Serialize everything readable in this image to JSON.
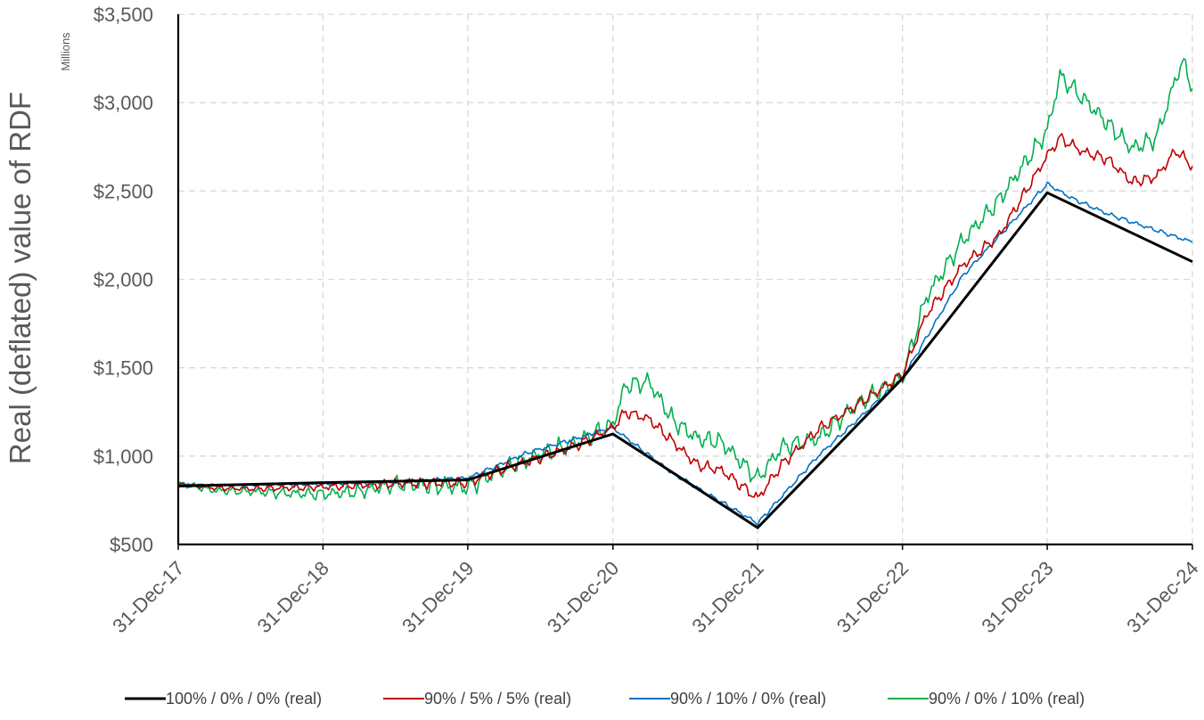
{
  "chart_data": {
    "type": "line",
    "ylabel": "Real (deflated) value of RDF",
    "y_units_label": "Millions",
    "ylim": [
      500,
      3500
    ],
    "y_ticks": [
      500,
      1000,
      1500,
      2000,
      2500,
      3000,
      3500
    ],
    "y_tick_labels": [
      "$500",
      "$1,000",
      "$1,500",
      "$2,000",
      "$2,500",
      "$3,000",
      "$3,500"
    ],
    "x_range": [
      "2017-12-31",
      "2024-12-31"
    ],
    "x_ticks": [
      "2017-12-31",
      "2018-12-31",
      "2019-12-31",
      "2020-12-31",
      "2021-12-31",
      "2022-12-31",
      "2023-12-31",
      "2024-12-31"
    ],
    "x_tick_labels": [
      "31-Dec-17",
      "31-Dec-18",
      "31-Dec-19",
      "31-Dec-20",
      "31-Dec-21",
      "31-Dec-22",
      "31-Dec-23",
      "31-Dec-24"
    ],
    "grid": true,
    "legend_position": "bottom",
    "series": [
      {
        "name": "100% / 0% / 0% (real)",
        "color": "#000000",
        "points": [
          [
            "2017-12-31",
            830
          ],
          [
            "2018-12-31",
            850
          ],
          [
            "2019-12-31",
            865
          ],
          [
            "2020-12-31",
            1125
          ],
          [
            "2021-12-31",
            595
          ],
          [
            "2022-12-31",
            1440
          ],
          [
            "2023-12-31",
            2490
          ],
          [
            "2024-12-31",
            2100
          ]
        ]
      },
      {
        "name": "90% / 5% / 5% (real)",
        "color": "#C00000",
        "points": [
          [
            "2017-12-31",
            840
          ],
          [
            "2018-04-01",
            820
          ],
          [
            "2018-07-01",
            815
          ],
          [
            "2018-10-01",
            820
          ],
          [
            "2018-12-31",
            825
          ],
          [
            "2019-04-01",
            835
          ],
          [
            "2019-07-01",
            845
          ],
          [
            "2019-12-31",
            850
          ],
          [
            "2020-04-01",
            930
          ],
          [
            "2020-07-01",
            990
          ],
          [
            "2020-10-01",
            1060
          ],
          [
            "2020-12-31",
            1160
          ],
          [
            "2021-02-01",
            1250
          ],
          [
            "2021-04-01",
            1210
          ],
          [
            "2021-06-01",
            1080
          ],
          [
            "2021-08-01",
            950
          ],
          [
            "2021-10-01",
            920
          ],
          [
            "2021-12-31",
            760
          ],
          [
            "2022-03-01",
            950
          ],
          [
            "2022-06-01",
            1150
          ],
          [
            "2022-09-01",
            1280
          ],
          [
            "2022-12-31",
            1460
          ],
          [
            "2023-03-01",
            1800
          ],
          [
            "2023-06-01",
            2080
          ],
          [
            "2023-09-01",
            2250
          ],
          [
            "2023-12-31",
            2700
          ],
          [
            "2024-02-01",
            2800
          ],
          [
            "2024-04-01",
            2720
          ],
          [
            "2024-06-01",
            2680
          ],
          [
            "2024-08-01",
            2550
          ],
          [
            "2024-10-01",
            2580
          ],
          [
            "2024-11-20",
            2730
          ],
          [
            "2024-12-31",
            2640
          ]
        ]
      },
      {
        "name": "90% / 10% / 0% (real)",
        "color": "#0070C0",
        "points": [
          [
            "2017-12-31",
            840
          ],
          [
            "2018-06-01",
            835
          ],
          [
            "2018-12-31",
            840
          ],
          [
            "2019-06-01",
            850
          ],
          [
            "2019-12-31",
            875
          ],
          [
            "2020-06-01",
            1020
          ],
          [
            "2020-12-31",
            1160
          ],
          [
            "2021-06-01",
            900
          ],
          [
            "2021-12-31",
            620
          ],
          [
            "2022-06-01",
            1000
          ],
          [
            "2022-12-31",
            1440
          ],
          [
            "2023-06-01",
            2020
          ],
          [
            "2023-12-31",
            2540
          ],
          [
            "2024-03-01",
            2460
          ],
          [
            "2024-06-01",
            2370
          ],
          [
            "2024-09-01",
            2300
          ],
          [
            "2024-12-31",
            2210
          ]
        ]
      },
      {
        "name": "90% / 0% / 10% (real)",
        "color": "#00B050",
        "points": [
          [
            "2017-12-31",
            845
          ],
          [
            "2018-04-01",
            805
          ],
          [
            "2018-07-01",
            800
          ],
          [
            "2018-10-01",
            790
          ],
          [
            "2018-12-31",
            785
          ],
          [
            "2019-04-01",
            800
          ],
          [
            "2019-07-01",
            840
          ],
          [
            "2019-12-31",
            825
          ],
          [
            "2020-04-01",
            930
          ],
          [
            "2020-07-01",
            1010
          ],
          [
            "2020-10-01",
            1080
          ],
          [
            "2020-12-31",
            1180
          ],
          [
            "2021-02-01",
            1400
          ],
          [
            "2021-04-01",
            1420
          ],
          [
            "2021-06-01",
            1200
          ],
          [
            "2021-08-01",
            1100
          ],
          [
            "2021-10-01",
            1080
          ],
          [
            "2021-12-31",
            870
          ],
          [
            "2022-03-01",
            1050
          ],
          [
            "2022-06-01",
            1100
          ],
          [
            "2022-09-01",
            1280
          ],
          [
            "2022-12-31",
            1450
          ],
          [
            "2023-03-01",
            1900
          ],
          [
            "2023-06-01",
            2220
          ],
          [
            "2023-09-01",
            2450
          ],
          [
            "2023-12-31",
            2840
          ],
          [
            "2024-02-01",
            3150
          ],
          [
            "2024-04-01",
            3020
          ],
          [
            "2024-06-01",
            2880
          ],
          [
            "2024-08-01",
            2740
          ],
          [
            "2024-10-01",
            2800
          ],
          [
            "2024-12-05",
            3240
          ],
          [
            "2024-12-31",
            3080
          ]
        ]
      }
    ]
  }
}
